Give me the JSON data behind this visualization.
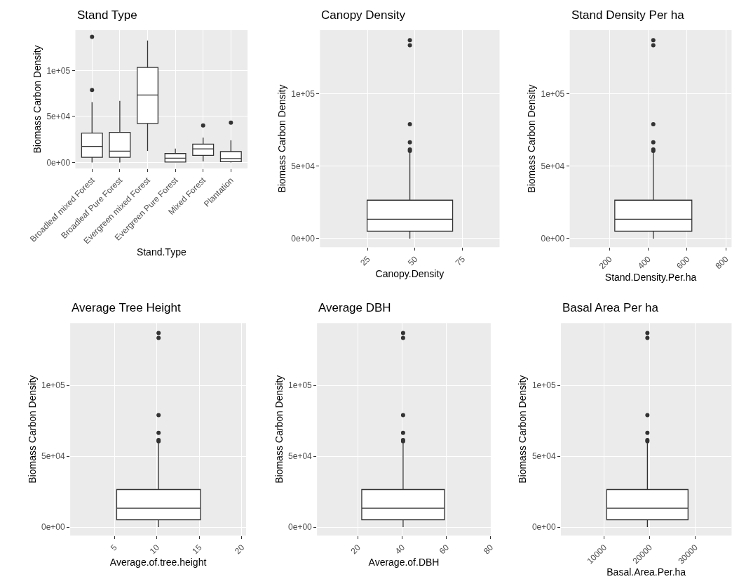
{
  "chart_data": [
    {
      "type": "box",
      "title": "Stand Type",
      "xlabel": "Stand.Type",
      "ylabel": "Biomass Carbon Density",
      "categories": [
        "Broadleaf mixed Forest",
        "Broadleaf Pure Forest",
        "Evergreen mixed Forest",
        "Evergreen Pure Forest",
        "Mixed Forest",
        "Plantation"
      ],
      "ylim": [
        -6600,
        144000
      ],
      "yticks": [
        {
          "value": 0,
          "label": "0e+00"
        },
        {
          "value": 50000,
          "label": "5e+04"
        },
        {
          "value": 100000,
          "label": "1e+05"
        }
      ],
      "grid": true,
      "marker": "circle",
      "color": "#333333",
      "boxes": [
        {
          "low": 0,
          "q1": 5600,
          "median": 17400,
          "q3": 32000,
          "high": 65700,
          "outliers": [
            78800,
            136600
          ]
        },
        {
          "low": 0,
          "q1": 5600,
          "median": 12300,
          "q3": 32700,
          "high": 67000
        },
        {
          "low": 12500,
          "q1": 42500,
          "median": 73400,
          "q3": 103300,
          "high": 132700
        },
        {
          "low": 0,
          "q1": 500,
          "median": 4600,
          "q3": 9700,
          "high": 15100
        },
        {
          "low": 1000,
          "q1": 7700,
          "median": 14800,
          "q3": 19900,
          "high": 27100,
          "outliers": [
            40200
          ]
        },
        {
          "low": 0,
          "q1": 800,
          "median": 4300,
          "q3": 11800,
          "high": 24000,
          "outliers": [
            43200
          ]
        }
      ]
    },
    {
      "type": "box",
      "title": "Canopy Density",
      "xlabel": "Canopy.Density",
      "ylabel": "Biomass Carbon Density",
      "x": [
        47.3
      ],
      "xlim": [
        0,
        94.5
      ],
      "xticks": [
        25,
        50,
        75
      ],
      "ylim": [
        -6000,
        144000
      ],
      "yticks": [
        {
          "value": 0,
          "label": "0e+00"
        },
        {
          "value": 50000,
          "label": "5e+04"
        },
        {
          "value": 100000,
          "label": "1e+05"
        }
      ],
      "grid": true,
      "marker": "circle",
      "color": "#333333",
      "boxes": [
        {
          "low": 0,
          "q1": 5100,
          "median": 13300,
          "q3": 26500,
          "high": 59300,
          "outliers": [
            60600,
            61500,
            66500,
            79000,
            133500,
            137000
          ]
        }
      ]
    },
    {
      "type": "box",
      "title": "Stand Density Per ha",
      "xlabel": "Stand.Density.Per.ha",
      "ylabel": "Biomass Carbon Density",
      "x": [
        426
      ],
      "xlim": [
        -5,
        830
      ],
      "xticks": [
        200,
        400,
        600,
        800
      ],
      "ylim": [
        -6000,
        144000
      ],
      "yticks": [
        {
          "value": 0,
          "label": "0e+00"
        },
        {
          "value": 50000,
          "label": "5e+04"
        },
        {
          "value": 100000,
          "label": "1e+05"
        }
      ],
      "grid": true,
      "marker": "circle",
      "color": "#333333",
      "boxes": [
        {
          "low": 0,
          "q1": 5100,
          "median": 13300,
          "q3": 26500,
          "high": 59300,
          "outliers": [
            60600,
            61500,
            66500,
            79000,
            133500,
            137000
          ]
        }
      ]
    },
    {
      "type": "box",
      "title": "Average Tree Height",
      "xlabel": "Average.of.tree.height",
      "ylabel": "Biomass Carbon Density",
      "x": [
        10.2
      ],
      "xlim": [
        -0.2,
        20.5
      ],
      "xticks": [
        5,
        10,
        15,
        20
      ],
      "ylim": [
        -6000,
        144000
      ],
      "yticks": [
        {
          "value": 0,
          "label": "0e+00"
        },
        {
          "value": 50000,
          "label": "5e+04"
        },
        {
          "value": 100000,
          "label": "1e+05"
        }
      ],
      "grid": true,
      "marker": "circle",
      "color": "#333333",
      "boxes": [
        {
          "low": 0,
          "q1": 5100,
          "median": 13300,
          "q3": 26500,
          "high": 59300,
          "outliers": [
            60600,
            61500,
            66500,
            79000,
            133500,
            137000
          ]
        }
      ]
    },
    {
      "type": "box",
      "title": "Average DBH",
      "xlabel": "Average.of.DBH",
      "ylabel": "Biomass Carbon Density",
      "x": [
        40.4
      ],
      "xlim": [
        1.5,
        80
      ],
      "xticks": [
        20,
        40,
        60,
        80
      ],
      "ylim": [
        -6000,
        144000
      ],
      "yticks": [
        {
          "value": 0,
          "label": "0e+00"
        },
        {
          "value": 50000,
          "label": "5e+04"
        },
        {
          "value": 100000,
          "label": "1e+05"
        }
      ],
      "grid": true,
      "marker": "circle",
      "color": "#333333",
      "boxes": [
        {
          "low": 0,
          "q1": 5100,
          "median": 13300,
          "q3": 26500,
          "high": 59300,
          "outliers": [
            60600,
            61500,
            66500,
            79000,
            133500,
            137000
          ]
        }
      ]
    },
    {
      "type": "box",
      "title": "Basal Area Per ha",
      "xlabel": "Basal.Area.Per.ha",
      "ylabel": "Biomass Carbon Density",
      "x": [
        19500
      ],
      "xlim": [
        500,
        38000
      ],
      "xticks": [
        10000,
        20000,
        30000
      ],
      "ylim": [
        -6000,
        144000
      ],
      "yticks": [
        {
          "value": 0,
          "label": "0e+00"
        },
        {
          "value": 50000,
          "label": "5e+04"
        },
        {
          "value": 100000,
          "label": "1e+05"
        }
      ],
      "grid": true,
      "marker": "circle",
      "color": "#333333",
      "boxes": [
        {
          "low": 0,
          "q1": 5100,
          "median": 13300,
          "q3": 26500,
          "high": 59300,
          "outliers": [
            60600,
            61500,
            66500,
            79000,
            133500,
            137000
          ]
        }
      ]
    }
  ]
}
